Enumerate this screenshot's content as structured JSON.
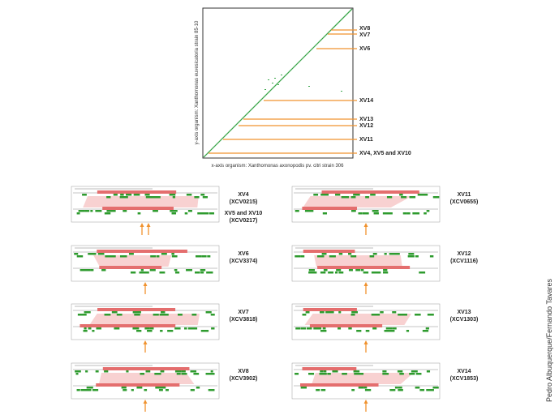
{
  "dotplot": {
    "y_axis_label": "y-axis organism: Xanthomonas euvesicatoria strain 85-10",
    "x_axis_label": "x-axis organism: Xanthomonas axonopodis pv. citri strain 306",
    "markers": [
      "XV8",
      "XV7",
      "XV6",
      "XV14",
      "XV13",
      "XV12",
      "XV11",
      "XV4, XV5 and XV10"
    ]
  },
  "panels": [
    {
      "labels": [
        [
          "XV4",
          "(XCV0215)"
        ],
        [
          "XV5 and XV10",
          "(XCV0217)"
        ]
      ]
    },
    {
      "labels": [
        [
          "XV11",
          "(XCV0655)"
        ]
      ]
    },
    {
      "labels": [
        [
          "XV6",
          "(XCV3374)"
        ]
      ]
    },
    {
      "labels": [
        [
          "XV12",
          "(XCV1116)"
        ]
      ]
    },
    {
      "labels": [
        [
          "XV7",
          "(XCV3818)"
        ]
      ]
    },
    {
      "labels": [
        [
          "XV13",
          "(XCV1303)"
        ]
      ]
    },
    {
      "labels": [
        [
          "XV8",
          "(XCV3902)"
        ]
      ]
    },
    {
      "labels": [
        [
          "XV14",
          "(XCV1853)"
        ]
      ]
    }
  ],
  "credit": "Pedro Albuquerque/Fernando Tavares"
}
